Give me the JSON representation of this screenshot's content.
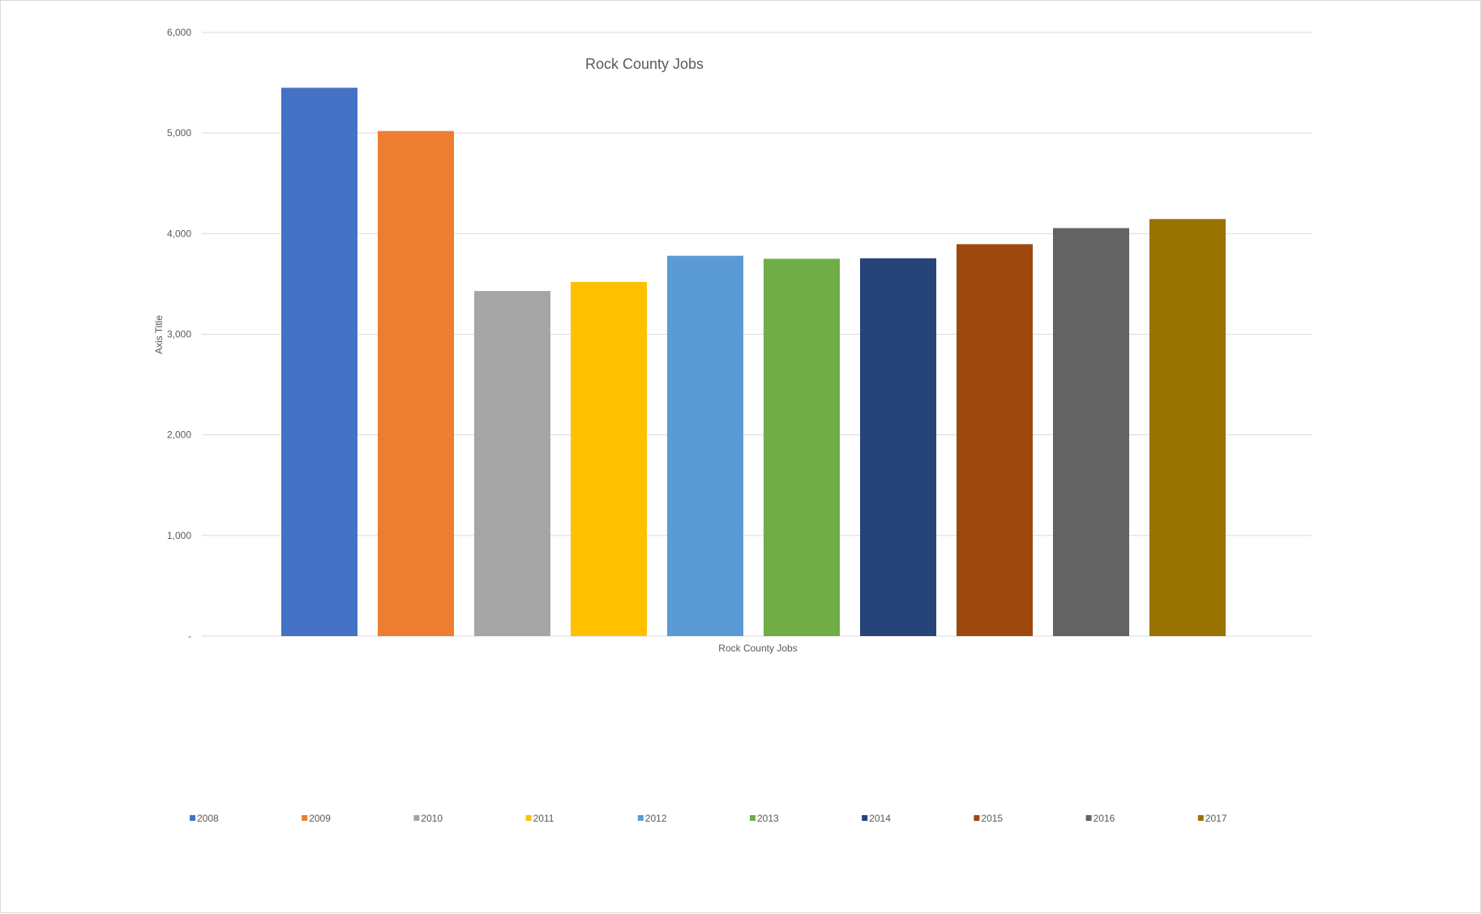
{
  "chart_data": {
    "type": "bar",
    "title": "Rock County Jobs",
    "xlabel": "Rock County Jobs",
    "ylabel": "Axis Title",
    "ylim": [
      0,
      6000
    ],
    "yticks": [
      0,
      1000,
      2000,
      3000,
      4000,
      5000,
      6000
    ],
    "ytick_labels": [
      "-",
      "1,000",
      "2,000",
      "3,000",
      "4,000",
      "5,000",
      "6,000"
    ],
    "grid": true,
    "legend_position": "bottom",
    "categories": [
      "Rock County Jobs"
    ],
    "series": [
      {
        "name": "2008",
        "values": [
          5450
        ],
        "color": "#4472C4"
      },
      {
        "name": "2009",
        "values": [
          5020
        ],
        "color": "#ED7D31"
      },
      {
        "name": "2010",
        "values": [
          3430
        ],
        "color": "#A5A5A5"
      },
      {
        "name": "2011",
        "values": [
          3520
        ],
        "color": "#FFC000"
      },
      {
        "name": "2012",
        "values": [
          3780
        ],
        "color": "#5B9BD5"
      },
      {
        "name": "2013",
        "values": [
          3750
        ],
        "color": "#70AD47"
      },
      {
        "name": "2014",
        "values": [
          3755
        ],
        "color": "#264478"
      },
      {
        "name": "2015",
        "values": [
          3895
        ],
        "color": "#9E480E"
      },
      {
        "name": "2016",
        "values": [
          4055
        ],
        "color": "#636363"
      },
      {
        "name": "2017",
        "values": [
          4145
        ],
        "color": "#997300"
      }
    ]
  }
}
